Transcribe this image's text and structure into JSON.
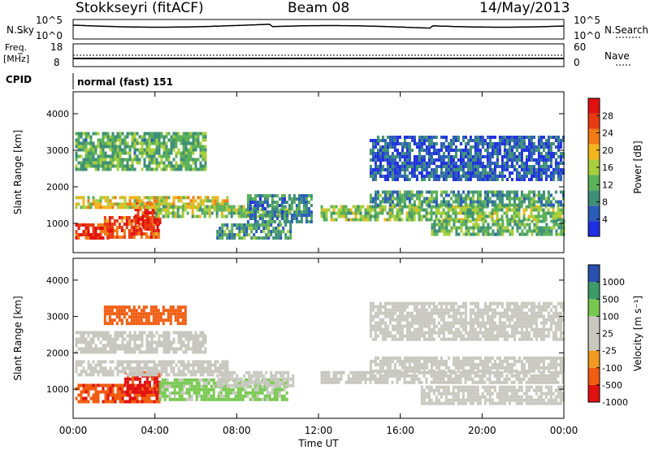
{
  "header": {
    "station": "Stokkseyri (fitACF)",
    "beam": "Beam 08",
    "date": "14/May/2013"
  },
  "top_panels": {
    "nsky_label": "N.Sky",
    "nsky_ticks": [
      "10^5",
      "10^0"
    ],
    "nsearch_label": "N.Search",
    "freq_label_1": "Freq.",
    "freq_label_2": "[MHz]",
    "freq_ticks": [
      "18",
      "8"
    ],
    "nave_label": "Nave",
    "nave_ticks": [
      "60",
      "0"
    ],
    "cpid_label": "CPID",
    "cpid_value": "normal (fast) 151"
  },
  "x_axis": {
    "ticks": [
      "00:00",
      "04:00",
      "08:00",
      "12:00",
      "16:00",
      "20:00",
      "00:00"
    ],
    "tick_hours": [
      0,
      4,
      8,
      12,
      16,
      20,
      24
    ],
    "label": "Time UT"
  },
  "colors": {
    "power_scale": [
      "#1e2ee0",
      "#2a5cb8",
      "#3e8f78",
      "#5bb05a",
      "#a8cf3c",
      "#f2b51c",
      "#f07c16",
      "#e83a10",
      "#e01010"
    ],
    "velocity_scale": [
      "#e01010",
      "#f05c10",
      "#f09a20",
      "#c8c8c0",
      "#c8c8c0",
      "#78c850",
      "#3a9a6a",
      "#2a50b0"
    ],
    "neutral_gray": "#c8c8c0"
  },
  "chart_data": [
    {
      "type": "heatmap",
      "name": "power",
      "ylabel": "Slant Range [km]",
      "yticks": [
        "1000",
        "2000",
        "3000",
        "4000"
      ],
      "ylim": [
        200,
        4600
      ],
      "xlim": [
        0,
        24
      ],
      "colorbar": {
        "label": "Power [dB]",
        "ticks": [
          "4",
          "8",
          "12",
          "16",
          "20",
          "24",
          "28"
        ],
        "range": [
          0,
          32
        ]
      },
      "bands": [
        {
          "t0": 0.1,
          "t1": 2.0,
          "r0": 600,
          "r1": 1000,
          "value": 28
        },
        {
          "t0": 1.5,
          "t1": 4.2,
          "r0": 650,
          "r1": 1200,
          "value": 26
        },
        {
          "t0": 3.0,
          "t1": 4.3,
          "r0": 800,
          "r1": 1600,
          "value": 29
        },
        {
          "t0": 0.1,
          "t1": 7.5,
          "r0": 1400,
          "r1": 1750,
          "value": 18
        },
        {
          "t0": 4.0,
          "t1": 10.6,
          "r0": 1150,
          "r1": 1500,
          "value": 14
        },
        {
          "t0": 7.0,
          "t1": 10.6,
          "r0": 600,
          "r1": 1000,
          "value": 10
        },
        {
          "t0": 8.5,
          "t1": 11.7,
          "r0": 1000,
          "r1": 1800,
          "value": 8
        },
        {
          "t0": 12.1,
          "t1": 24.0,
          "r0": 1100,
          "r1": 1500,
          "value": 14
        },
        {
          "t0": 14.5,
          "t1": 24.0,
          "r0": 1500,
          "r1": 1900,
          "value": 10
        },
        {
          "t0": 17.5,
          "t1": 24.0,
          "r0": 700,
          "r1": 1100,
          "value": 12
        },
        {
          "t0": 0.1,
          "t1": 6.5,
          "r0": 2500,
          "r1": 3500,
          "value": 12
        },
        {
          "t0": 14.5,
          "t1": 24.0,
          "r0": 2200,
          "r1": 3400,
          "value": 5
        }
      ]
    },
    {
      "type": "heatmap",
      "name": "velocity",
      "ylabel": "Slant Range [km]",
      "yticks": [
        "1000",
        "2000",
        "3000",
        "4000"
      ],
      "ylim": [
        200,
        4600
      ],
      "xlim": [
        0,
        24
      ],
      "colorbar": {
        "label": "Velocity [m s⁻¹]",
        "ticks": [
          "1000",
          "500",
          "100",
          "25",
          "-25",
          "-100",
          "-500",
          "-1000"
        ]
      },
      "bands": [
        {
          "t0": 0.1,
          "t1": 4.2,
          "r0": 650,
          "r1": 1150,
          "value": -400
        },
        {
          "t0": 2.5,
          "t1": 4.2,
          "r0": 900,
          "r1": 1500,
          "value": -600
        },
        {
          "t0": 4.2,
          "t1": 10.5,
          "r0": 700,
          "r1": 1300,
          "value": 200
        },
        {
          "t0": 0.1,
          "t1": 7.5,
          "r0": 1400,
          "r1": 1800,
          "value": 0
        },
        {
          "t0": 7.0,
          "t1": 10.8,
          "r0": 1100,
          "r1": 1500,
          "value": 0
        },
        {
          "t0": 12.1,
          "t1": 24.0,
          "r0": 1150,
          "r1": 1500,
          "value": 0
        },
        {
          "t0": 14.5,
          "t1": 24.0,
          "r0": 1500,
          "r1": 1900,
          "value": 0
        },
        {
          "t0": 17.0,
          "t1": 24.0,
          "r0": 650,
          "r1": 1100,
          "value": 0
        },
        {
          "t0": 1.5,
          "t1": 5.5,
          "r0": 2800,
          "r1": 3300,
          "value": -300
        },
        {
          "t0": 0.1,
          "t1": 6.5,
          "r0": 2000,
          "r1": 2600,
          "value": 0
        },
        {
          "t0": 14.5,
          "t1": 24.0,
          "r0": 2400,
          "r1": 3400,
          "value": 0
        }
      ]
    }
  ]
}
